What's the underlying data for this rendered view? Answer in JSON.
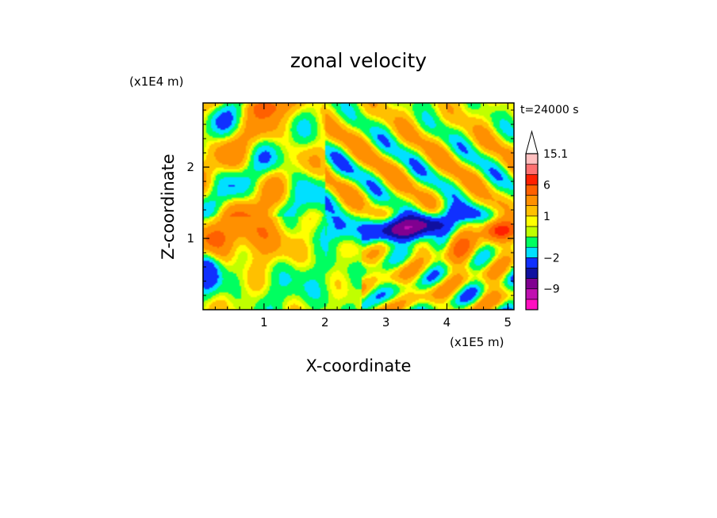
{
  "chart_data": {
    "type": "heatmap",
    "title": "zonal velocity",
    "xlabel": "X-coordinate",
    "ylabel": "Z-coordinate",
    "x_unit": "(x1E5 m)",
    "y_unit": "(x1E4 m)",
    "time_label": "t=24000 s",
    "xlim": [
      0,
      5.1
    ],
    "ylim": [
      0,
      2.9
    ],
    "xticks": [
      "1",
      "2",
      "3",
      "4",
      "5"
    ],
    "yticks": [
      "1",
      "2"
    ],
    "xtick_values": [
      1,
      2,
      3,
      4,
      5
    ],
    "ytick_values": [
      1,
      2
    ],
    "colorbar": {
      "labels": [
        "15.1",
        "6",
        "1",
        "−2",
        "−9"
      ],
      "label_values": [
        15.1,
        6,
        1,
        -2,
        -9
      ],
      "levels": [
        {
          "min": -15,
          "max": -12,
          "color": "#ff10c0"
        },
        {
          "min": -12,
          "max": -9,
          "color": "#c010b0"
        },
        {
          "min": -9,
          "max": -6,
          "color": "#800090"
        },
        {
          "min": -6,
          "max": -4,
          "color": "#1010a0"
        },
        {
          "min": -4,
          "max": -2,
          "color": "#1030ff"
        },
        {
          "min": -2,
          "max": -1,
          "color": "#00e0ff"
        },
        {
          "min": -1,
          "max": 0,
          "color": "#00ff60"
        },
        {
          "min": 0,
          "max": 0.5,
          "color": "#c0ff00"
        },
        {
          "min": 0.5,
          "max": 1,
          "color": "#ffff00"
        },
        {
          "min": 1,
          "max": 2,
          "color": "#ffc000"
        },
        {
          "min": 2,
          "max": 4,
          "color": "#ff9000"
        },
        {
          "min": 4,
          "max": 6,
          "color": "#ff6000"
        },
        {
          "min": 6,
          "max": 9,
          "color": "#ff2000"
        },
        {
          "min": 9,
          "max": 12,
          "color": "#ff7070"
        },
        {
          "min": 12,
          "max": 15.1,
          "color": "#ffc0c0"
        },
        {
          "min": 15.1,
          "max": 20,
          "color": "#ffffff"
        }
      ]
    },
    "field_note": "Turbulent wave field: zonal velocity contoured over x (0–5.1e5 m) and z (0–2.9e4 m); strong negative core near x=3.3, z=1.1; positive patches upper-left and right near z=1.1."
  }
}
